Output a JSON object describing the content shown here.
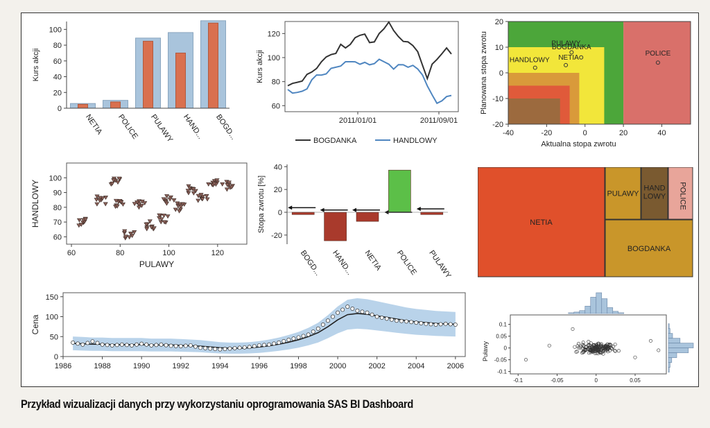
{
  "caption": "Przykład wizualizacji danych przy wykorzystaniu oprogramowania SAS BI Dashboard",
  "colors": {
    "bar_orange": "#d9704f",
    "bar_blue": "#a9c4dc",
    "bogdanka_line": "#333333",
    "handlowy_line": "#4f86c0",
    "bullet_red": "#a93a2c",
    "bullet_green": "#5cbf48",
    "tm_netia": "#e0502b",
    "tm_bogdanka": "#c9962a",
    "tm_pulawy": "#c9962a",
    "tm_handlowy": "#7a5a30",
    "tm_police": "#e8a59a"
  },
  "chart_data": [
    {
      "type": "bar",
      "ylabel": "Kurs akcji",
      "ylim": [
        0,
        110
      ],
      "yticks": [
        0,
        20,
        40,
        60,
        80,
        100
      ],
      "categories": [
        "NETIA",
        "POLICE",
        "PULAWY",
        "HAND...",
        "BOGD..."
      ],
      "series": [
        {
          "values": [
            5,
            8,
            85,
            70,
            108
          ]
        },
        {
          "values": [
            6,
            10,
            89,
            96,
            111
          ]
        }
      ]
    },
    {
      "type": "line",
      "ylabel": "Kurs akcji",
      "ylim": [
        55,
        130
      ],
      "yticks": [
        60,
        80,
        100,
        120
      ],
      "xticks": [
        "2011/01/01",
        "2011/09/01"
      ],
      "legend_position": "bottom",
      "series": [
        {
          "name": "BOGDANKA",
          "values": [
            75,
            78,
            80,
            82,
            85,
            88,
            92,
            95,
            100,
            103,
            105,
            110,
            108,
            112,
            115,
            118,
            120,
            114,
            112,
            120,
            125,
            128,
            122,
            118,
            115,
            112,
            110,
            106,
            92,
            82,
            95,
            100,
            102,
            108,
            104
          ]
        },
        {
          "name": "HANDLOWY",
          "values": [
            74,
            72,
            70,
            72,
            75,
            80,
            85,
            86,
            88,
            90,
            92,
            94,
            95,
            96,
            97,
            96,
            95,
            94,
            96,
            97,
            96,
            95,
            92,
            93,
            94,
            93,
            92,
            90,
            86,
            78,
            68,
            62,
            65,
            66,
            68
          ]
        }
      ]
    },
    {
      "type": "heatmap",
      "ylabel": "Planowana stopa zwrotu",
      "xlabel": "Aktualna stopa zwrotu",
      "xlim": [
        -40,
        55
      ],
      "ylim": [
        -20,
        20
      ],
      "xticks": [
        -40,
        -20,
        0,
        20,
        40
      ],
      "yticks": [
        -20,
        -10,
        0,
        10,
        20
      ],
      "points": [
        {
          "label": "HANDLOWY",
          "x": -26,
          "y": 2
        },
        {
          "label": "NETIA",
          "x": -10,
          "y": 3
        },
        {
          "label": "PULAWY",
          "x": -7,
          "y": 8
        },
        {
          "label": "BOGDANKA",
          "x": -2,
          "y": 6
        },
        {
          "label": "POLICE",
          "x": 38,
          "y": 4
        }
      ]
    },
    {
      "type": "scatter",
      "xlabel": "PULAWY",
      "ylabel": "HANDLOWY",
      "xlim": [
        58,
        132
      ],
      "ylim": [
        55,
        110
      ],
      "xticks": [
        60,
        80,
        100,
        120
      ],
      "yticks": [
        60,
        70,
        80,
        90,
        100
      ],
      "clusters": [
        {
          "x": 65,
          "y": 70
        },
        {
          "x": 72,
          "y": 85
        },
        {
          "x": 80,
          "y": 83
        },
        {
          "x": 88,
          "y": 82
        },
        {
          "x": 92,
          "y": 68
        },
        {
          "x": 84,
          "y": 62
        },
        {
          "x": 98,
          "y": 72
        },
        {
          "x": 105,
          "y": 80
        },
        {
          "x": 110,
          "y": 92
        },
        {
          "x": 118,
          "y": 98
        },
        {
          "x": 124,
          "y": 95
        },
        {
          "x": 100,
          "y": 85
        },
        {
          "x": 114,
          "y": 86
        },
        {
          "x": 78,
          "y": 97
        }
      ]
    },
    {
      "type": "bar",
      "ylabel": "Stopa zwrotu [%]",
      "ylim": [
        -28,
        42
      ],
      "yticks": [
        -20,
        0,
        20,
        40
      ],
      "categories": [
        "BOGD...",
        "HAND...",
        "NETIA",
        "POLICE",
        "PULAWY"
      ],
      "values": [
        -2,
        -25,
        -8,
        37,
        -2
      ],
      "targets": [
        4,
        2,
        2,
        0,
        3
      ]
    },
    {
      "type": "heatmap",
      "items": [
        {
          "label": "NETIA",
          "value": 48
        },
        {
          "label": "BOGDANKA",
          "value": 18
        },
        {
          "label": "PULAWY",
          "value": 10
        },
        {
          "label": "HAND\nLOWY",
          "value": 6
        },
        {
          "label": "POLICE",
          "value": 3
        }
      ]
    },
    {
      "type": "scatter",
      "ylabel": "Puławy",
      "xlim": [
        -0.11,
        0.09
      ],
      "ylim": [
        -0.11,
        0.14
      ],
      "xticks": [
        -0.1,
        -0.05,
        0,
        0.05
      ],
      "xtick_labels": [
        "-0.1",
        "-0.05",
        "0",
        "0.05"
      ],
      "yticks": [
        -0.1,
        -0.05,
        0,
        0.05,
        0.1
      ],
      "ytick_labels": [
        "-0.1",
        "-0.05",
        "0",
        "0.05",
        "0.1"
      ],
      "hist_x": [
        1,
        2,
        4,
        10,
        22,
        28,
        20,
        8,
        3,
        1
      ],
      "hist_y": [
        1,
        2,
        5,
        14,
        30,
        24,
        10,
        4,
        2,
        1
      ]
    },
    {
      "type": "line",
      "ylabel": "Cena",
      "xlim": [
        1986,
        2006.5
      ],
      "ylim": [
        0,
        160
      ],
      "xticks": [
        1986,
        1988,
        1990,
        1992,
        1994,
        1996,
        1998,
        2000,
        2002,
        2004,
        2006
      ],
      "yticks": [
        0,
        50,
        100,
        150
      ],
      "x": [
        1986.5,
        1987,
        1987.5,
        1988,
        1988.5,
        1989,
        1989.5,
        1990,
        1990.5,
        1991,
        1991.5,
        1992,
        1992.5,
        1993,
        1993.5,
        1994,
        1994.5,
        1995,
        1995.5,
        1996,
        1996.5,
        1997,
        1997.5,
        1998,
        1998.5,
        1999,
        1999.5,
        2000,
        2000.5,
        2001,
        2001.5,
        2002,
        2002.5,
        2003,
        2003.5,
        2004,
        2004.5,
        2005,
        2005.5,
        2006
      ],
      "series": [
        {
          "values": [
            35,
            30,
            38,
            30,
            28,
            30,
            28,
            32,
            28,
            30,
            27,
            26,
            28,
            22,
            20,
            18,
            20,
            22,
            24,
            28,
            30,
            35,
            42,
            48,
            55,
            70,
            90,
            110,
            125,
            115,
            110,
            100,
            95,
            90,
            88,
            85,
            82,
            80,
            82,
            80
          ]
        },
        {
          "values": [
            33,
            32,
            31,
            31,
            30,
            30,
            30,
            30,
            29,
            29,
            29,
            28,
            27,
            26,
            24,
            22,
            21,
            21,
            22,
            24,
            27,
            31,
            36,
            42,
            50,
            60,
            75,
            92,
            105,
            108,
            106,
            102,
            98,
            94,
            90,
            87,
            85,
            83,
            82,
            81
          ]
        }
      ]
    }
  ]
}
